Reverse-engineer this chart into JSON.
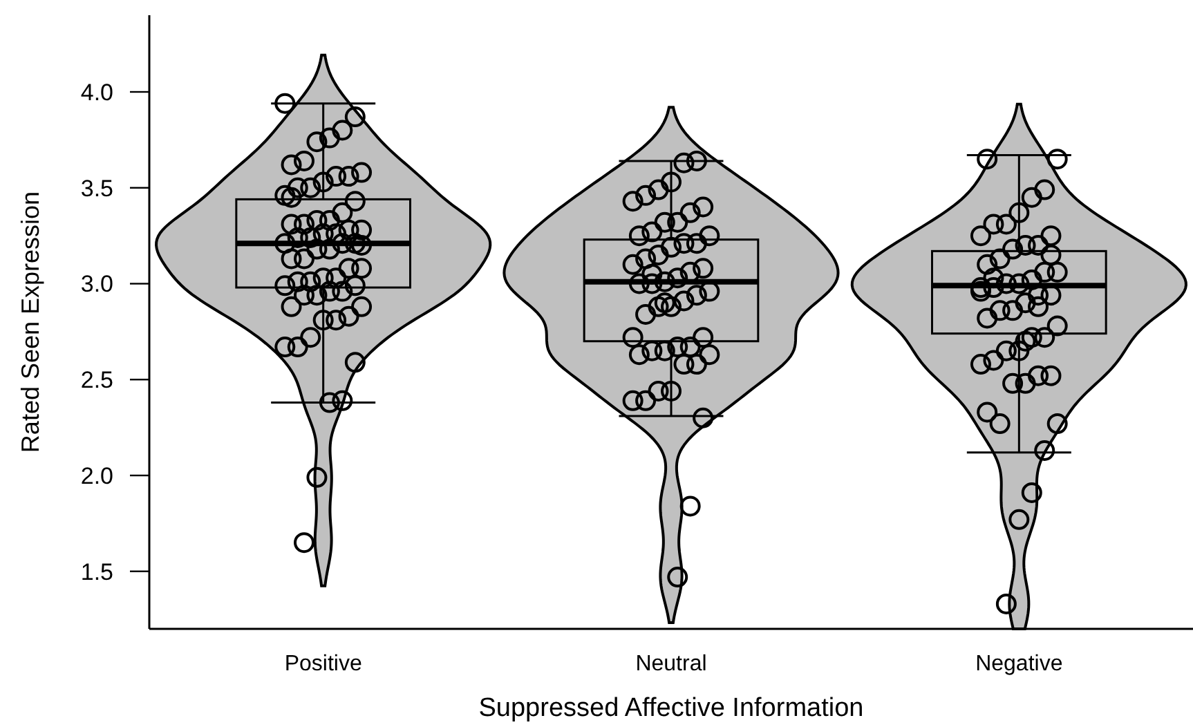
{
  "chart_data": {
    "type": "box",
    "xlabel": "Suppressed Affective Information",
    "ylabel": "Rated Seen Expression",
    "categories": [
      "Positive",
      "Neutral",
      "Negative"
    ],
    "ylim": [
      1.2,
      4.4
    ],
    "yticks": [
      {
        "value": 1.5,
        "label": "1.5"
      },
      {
        "value": 2,
        "label": "2.0"
      },
      {
        "value": 2.5,
        "label": "2.5"
      },
      {
        "value": 3,
        "label": "3.0"
      },
      {
        "value": 3.5,
        "label": "3.5"
      },
      {
        "value": 4,
        "label": "4.0"
      }
    ],
    "grid": false,
    "marker": "circle",
    "series": [
      {
        "type": "box",
        "color": "#000000",
        "boxes": [
          {
            "low": 2.38,
            "q1": 2.98,
            "median": 3.21,
            "q3": 3.44,
            "high": 3.94
          },
          {
            "low": 2.31,
            "q1": 2.7,
            "median": 3.01,
            "q3": 3.23,
            "high": 3.64
          },
          {
            "low": 2.12,
            "q1": 2.74,
            "median": 2.99,
            "q3": 3.17,
            "high": 3.67
          }
        ]
      },
      {
        "type": "scatter",
        "color": "#000000",
        "x": [
          "Positive",
          "Positive",
          "Positive",
          "Positive",
          "Positive",
          "Positive",
          "Positive",
          "Positive",
          "Positive",
          "Positive",
          "Positive",
          "Positive",
          "Positive",
          "Positive",
          "Positive",
          "Positive",
          "Positive",
          "Positive",
          "Positive",
          "Positive",
          "Positive",
          "Positive",
          "Positive",
          "Positive",
          "Positive",
          "Positive",
          "Positive",
          "Positive",
          "Positive",
          "Positive",
          "Positive",
          "Positive",
          "Positive",
          "Positive",
          "Positive",
          "Positive",
          "Positive",
          "Positive",
          "Positive",
          "Positive",
          "Positive",
          "Positive",
          "Positive",
          "Positive",
          "Positive",
          "Positive",
          "Positive",
          "Positive",
          "Positive",
          "Positive",
          "Positive",
          "Positive",
          "Positive",
          "Positive",
          "Positive",
          "Positive",
          "Positive",
          "Positive",
          "Positive",
          "Positive",
          "Neutral",
          "Neutral",
          "Neutral",
          "Neutral",
          "Neutral",
          "Neutral",
          "Neutral",
          "Neutral",
          "Neutral",
          "Neutral",
          "Neutral",
          "Neutral",
          "Neutral",
          "Neutral",
          "Neutral",
          "Neutral",
          "Neutral",
          "Neutral",
          "Neutral",
          "Neutral",
          "Neutral",
          "Neutral",
          "Neutral",
          "Neutral",
          "Neutral",
          "Neutral",
          "Neutral",
          "Neutral",
          "Neutral",
          "Neutral",
          "Neutral",
          "Neutral",
          "Neutral",
          "Neutral",
          "Neutral",
          "Neutral",
          "Neutral",
          "Neutral",
          "Neutral",
          "Neutral",
          "Neutral",
          "Neutral",
          "Neutral",
          "Neutral",
          "Neutral",
          "Neutral",
          "Neutral",
          "Neutral",
          "Neutral",
          "Neutral",
          "Negative",
          "Negative",
          "Negative",
          "Negative",
          "Negative",
          "Negative",
          "Negative",
          "Negative",
          "Negative",
          "Negative",
          "Negative",
          "Negative",
          "Negative",
          "Negative",
          "Negative",
          "Negative",
          "Negative",
          "Negative",
          "Negative",
          "Negative",
          "Negative",
          "Negative",
          "Negative",
          "Negative",
          "Negative",
          "Negative",
          "Negative",
          "Negative",
          "Negative",
          "Negative",
          "Negative",
          "Negative",
          "Negative",
          "Negative",
          "Negative",
          "Negative",
          "Negative",
          "Negative",
          "Negative",
          "Negative",
          "Negative",
          "Negative",
          "Negative",
          "Negative",
          "Negative",
          "Negative",
          "Negative",
          "Negative",
          "Negative",
          "Negative"
        ],
        "values": [
          3.94,
          3.87,
          3.8,
          3.76,
          3.74,
          3.64,
          3.62,
          3.58,
          3.56,
          3.56,
          3.53,
          3.5,
          3.5,
          3.46,
          3.43,
          3.37,
          3.33,
          3.33,
          3.31,
          3.31,
          3.28,
          3.28,
          3.26,
          3.26,
          3.24,
          3.24,
          3.21,
          3.21,
          3.21,
          3.18,
          3.18,
          3.13,
          3.13,
          3.08,
          3.08,
          3.03,
          3.03,
          3.01,
          3.01,
          2.99,
          2.99,
          2.96,
          2.96,
          2.94,
          2.94,
          2.88,
          2.88,
          2.83,
          2.81,
          2.81,
          2.72,
          2.67,
          2.67,
          2.59,
          2.39,
          2.38,
          1.99,
          1.65,
          3.45,
          3.2,
          3.64,
          3.63,
          3.53,
          3.49,
          3.46,
          3.43,
          3.4,
          3.37,
          3.32,
          3.32,
          3.27,
          3.25,
          3.25,
          3.21,
          3.21,
          3.19,
          3.15,
          3.13,
          3.1,
          3.08,
          3.06,
          3.03,
          3.01,
          3.0,
          3.0,
          2.96,
          2.94,
          2.91,
          2.88,
          2.88,
          2.84,
          2.72,
          2.72,
          2.67,
          2.67,
          2.65,
          2.65,
          2.63,
          2.63,
          2.58,
          2.58,
          2.44,
          2.44,
          2.39,
          2.39,
          2.3,
          1.84,
          1.47,
          2.9,
          3.05,
          3.65,
          3.65,
          3.49,
          3.45,
          3.37,
          3.31,
          3.31,
          3.25,
          3.25,
          3.2,
          3.2,
          3.18,
          3.13,
          3.1,
          3.06,
          3.06,
          3.02,
          3.0,
          3.0,
          2.98,
          2.98,
          2.94,
          2.94,
          2.9,
          2.86,
          2.86,
          2.82,
          2.78,
          2.72,
          2.72,
          2.65,
          2.65,
          2.6,
          2.58,
          2.52,
          2.52,
          2.48,
          2.48,
          2.27,
          2.33,
          2.27,
          2.13,
          1.91,
          1.77,
          1.33,
          3.03,
          2.96,
          3.15,
          2.88,
          2.7
        ]
      }
    ]
  }
}
